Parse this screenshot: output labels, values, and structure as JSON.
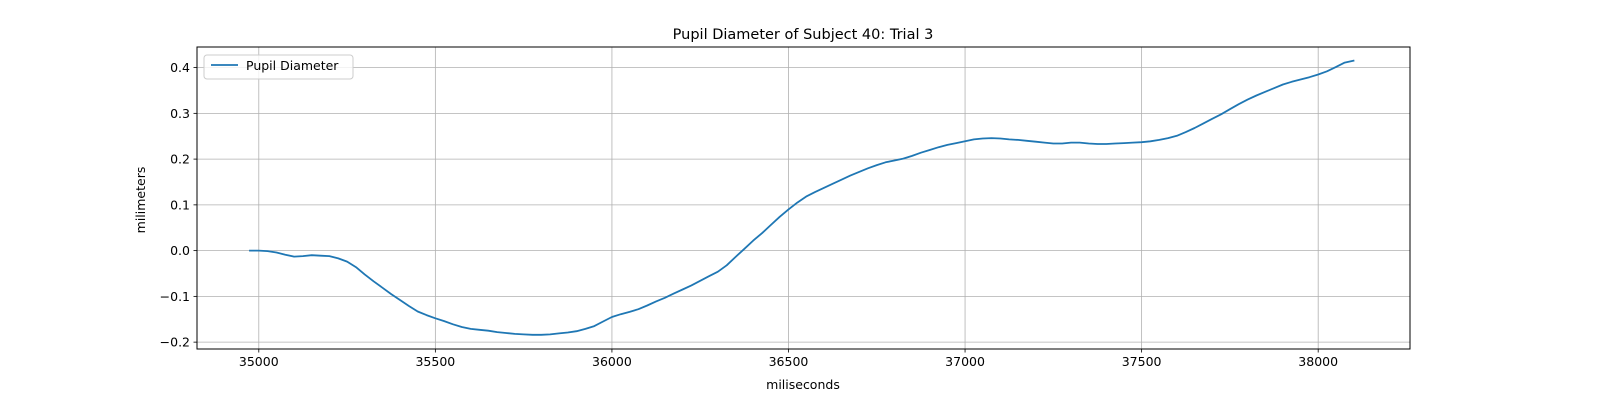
{
  "chart_data": {
    "type": "line",
    "title": "Pupil Diameter of Subject 40: Trial 3",
    "xlabel": "miliseconds",
    "ylabel": "milimeters",
    "xlim": [
      34825,
      38260
    ],
    "ylim": [
      -0.215,
      0.445
    ],
    "xticks": [
      35000,
      35500,
      36000,
      36500,
      37000,
      37500,
      38000
    ],
    "yticks": [
      -0.2,
      -0.1,
      0.0,
      0.1,
      0.2,
      0.3,
      0.4
    ],
    "xtick_labels": [
      "35000",
      "35500",
      "36000",
      "36500",
      "37000",
      "37500",
      "38000"
    ],
    "ytick_labels": [
      "−0.2",
      "−0.1",
      "0.0",
      "0.1",
      "0.2",
      "0.3",
      "0.4"
    ],
    "grid": true,
    "legend_position": "upper left",
    "series": [
      {
        "name": "Pupil Diameter",
        "color": "#1f77b4",
        "x": [
          34975,
          35000,
          35025,
          35050,
          35075,
          35100,
          35125,
          35150,
          35175,
          35200,
          35225,
          35250,
          35275,
          35300,
          35325,
          35350,
          35375,
          35400,
          35425,
          35450,
          35475,
          35500,
          35525,
          35550,
          35575,
          35600,
          35625,
          35650,
          35675,
          35700,
          35725,
          35750,
          35775,
          35800,
          35825,
          35850,
          35875,
          35900,
          35925,
          35950,
          35975,
          36000,
          36025,
          36050,
          36075,
          36100,
          36125,
          36150,
          36175,
          36200,
          36225,
          36250,
          36275,
          36300,
          36325,
          36350,
          36375,
          36400,
          36425,
          36450,
          36475,
          36500,
          36525,
          36550,
          36575,
          36600,
          36625,
          36650,
          36675,
          36700,
          36725,
          36750,
          36775,
          36800,
          36825,
          36850,
          36875,
          36900,
          36925,
          36950,
          36975,
          37000,
          37025,
          37050,
          37075,
          37100,
          37125,
          37150,
          37175,
          37200,
          37225,
          37250,
          37275,
          37300,
          37325,
          37350,
          37375,
          37400,
          37425,
          37450,
          37475,
          37500,
          37525,
          37550,
          37575,
          37600,
          37625,
          37650,
          37675,
          37700,
          37725,
          37750,
          37775,
          37800,
          37825,
          37850,
          37875,
          37900,
          37925,
          37950,
          37975,
          38000,
          38025,
          38050,
          38075,
          38100
        ],
        "values": [
          0.0,
          0.0,
          -0.001,
          -0.004,
          -0.009,
          -0.013,
          -0.012,
          -0.01,
          -0.011,
          -0.012,
          -0.017,
          -0.024,
          -0.036,
          -0.052,
          -0.067,
          -0.081,
          -0.095,
          -0.108,
          -0.121,
          -0.133,
          -0.141,
          -0.148,
          -0.154,
          -0.161,
          -0.167,
          -0.171,
          -0.173,
          -0.175,
          -0.178,
          -0.18,
          -0.182,
          -0.183,
          -0.184,
          -0.184,
          -0.183,
          -0.181,
          -0.179,
          -0.176,
          -0.171,
          -0.165,
          -0.155,
          -0.145,
          -0.139,
          -0.134,
          -0.128,
          -0.12,
          -0.111,
          -0.103,
          -0.094,
          -0.085,
          -0.076,
          -0.066,
          -0.056,
          -0.046,
          -0.032,
          -0.014,
          0.004,
          0.022,
          0.038,
          0.056,
          0.074,
          0.09,
          0.105,
          0.118,
          0.128,
          0.137,
          0.146,
          0.155,
          0.164,
          0.172,
          0.18,
          0.187,
          0.193,
          0.197,
          0.201,
          0.207,
          0.214,
          0.22,
          0.226,
          0.231,
          0.235,
          0.239,
          0.243,
          0.245,
          0.246,
          0.245,
          0.243,
          0.242,
          0.24,
          0.238,
          0.236,
          0.234,
          0.234,
          0.236,
          0.236,
          0.234,
          0.233,
          0.233,
          0.234,
          0.235,
          0.236,
          0.237,
          0.239,
          0.242,
          0.246,
          0.251,
          0.259,
          0.268,
          0.278,
          0.288,
          0.298,
          0.309,
          0.32,
          0.33,
          0.339,
          0.347,
          0.355,
          0.363,
          0.369,
          0.374,
          0.379,
          0.385,
          0.392,
          0.401,
          0.411,
          0.415
        ]
      }
    ]
  }
}
